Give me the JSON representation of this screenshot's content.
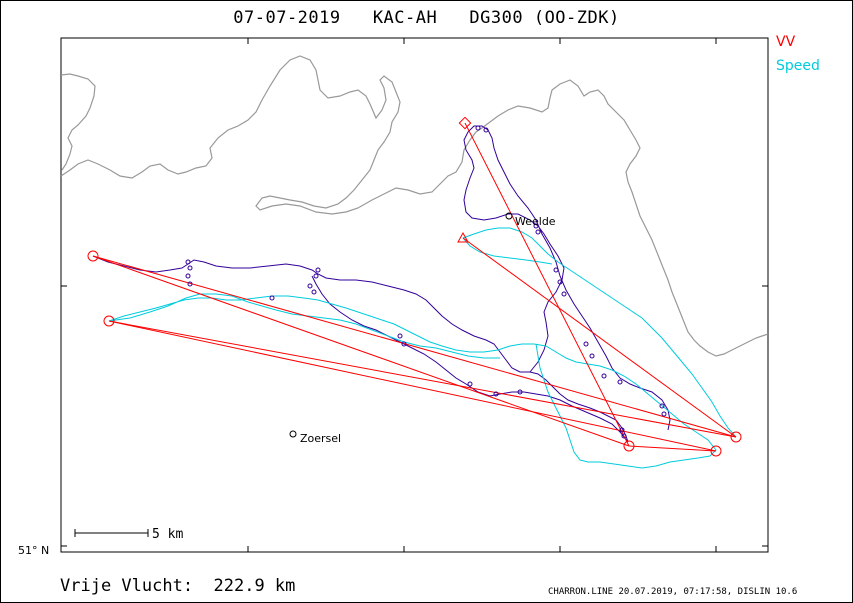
{
  "title": "07-07-2019   KAC-AH   DG300 (OO-ZDK)",
  "legend": {
    "vv_label": "VV",
    "speed_label": "Speed",
    "vv_color": "#ff0000",
    "speed_color": "#00ccdd",
    "track_color": "#330099",
    "border_color": "#999999"
  },
  "towns": [
    {
      "name": "Weelde"
    },
    {
      "name": "Zoersel"
    }
  ],
  "scale_bar": {
    "label": "5 km"
  },
  "latitude_label": "51° N",
  "distance_label": "Vrije Vlucht:  222.9 km",
  "software_label": "CHARRON.LINE 20.07.2019, 07:17:58, DISLIN 10.6"
}
